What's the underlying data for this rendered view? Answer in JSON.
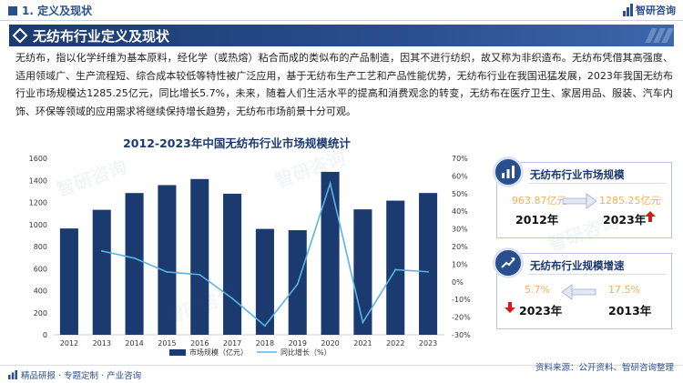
{
  "section": {
    "title": "1. 定义及现状"
  },
  "logo": {
    "text": "智研咨询"
  },
  "banner": {
    "title": "无纺布行业定义及现状"
  },
  "paragraph": "无纺布，指以化学纤维为基本原料，经化学（或热熔）粘合而成的类似布的产品制造，因其不进行纺织，故又称为非织造布。无纺布凭借其高强度、适用领域广、生产流程短、综合成本较低等特性被广泛应用，基于无纺布生产工艺和产品性能优势，无纺布行业在我国迅猛发展，2023年我国无纺布行业市场规模达1285.25亿元，同比增长5.7%，未来，随着人们生活水平的提高和消费观念的转变，无纺布在医疗卫生、家居用品、服装、汽车内饰、环保等领域的应用需求将继续保持增长趋势，无纺布市场前景十分可观。",
  "chart_data": {
    "type": "bar",
    "title": "2012-2023年中国无纺布行业市场规模统计",
    "categories": [
      "2012",
      "2013",
      "2014",
      "2015",
      "2016",
      "2017",
      "2018",
      "2019",
      "2020",
      "2021",
      "2022",
      "2023"
    ],
    "series": [
      {
        "name": "市场规模（亿元）",
        "type": "bar",
        "axis": "left",
        "values": [
          963.87,
          1133,
          1285,
          1357,
          1412,
          1279,
          960,
          948,
          1477,
          1137,
          1216,
          1285.25
        ]
      },
      {
        "name": "同比增长（%）",
        "type": "line",
        "axis": "right",
        "values": [
          null,
          17.5,
          13.4,
          5.6,
          4.1,
          -9.4,
          -24.9,
          -1.3,
          55.8,
          -23.0,
          6.9,
          5.7
        ]
      }
    ],
    "ylim_left": [
      0,
      1600
    ],
    "yticks_left": [
      "0",
      "200",
      "400",
      "600",
      "800",
      "1000",
      "1200",
      "1400",
      "1600"
    ],
    "ylim_right": [
      -30,
      70
    ],
    "yticks_right": [
      "-30%",
      "-20%",
      "-10%",
      "0%",
      "10%",
      "20%",
      "30%",
      "40%",
      "50%",
      "60%",
      "70%"
    ],
    "legend_position": "bottom",
    "colors": {
      "bar": "#1b3a70",
      "line": "#5bb3e4"
    }
  },
  "card1": {
    "title": "无纺布行业市场规模",
    "left_value": "963.87亿元",
    "left_year": "2012年",
    "right_value": "1285.25亿元",
    "right_year": "2023年",
    "trend": "up"
  },
  "card2": {
    "title": "无纺布行业规模增速",
    "left_value": "5.7%",
    "left_year": "2023年",
    "right_value": "17.5%",
    "right_year": "2013年",
    "trend": "down"
  },
  "footer": {
    "left": "精品研报 · 专题定制 · 产业咨询",
    "source": "资料来源：公开资料、智研咨询整理"
  },
  "watermark": "智研咨询",
  "colors": {
    "brand": "#2a4f8e",
    "accent": "#f2b05a",
    "up_down": "#d11b1b"
  }
}
